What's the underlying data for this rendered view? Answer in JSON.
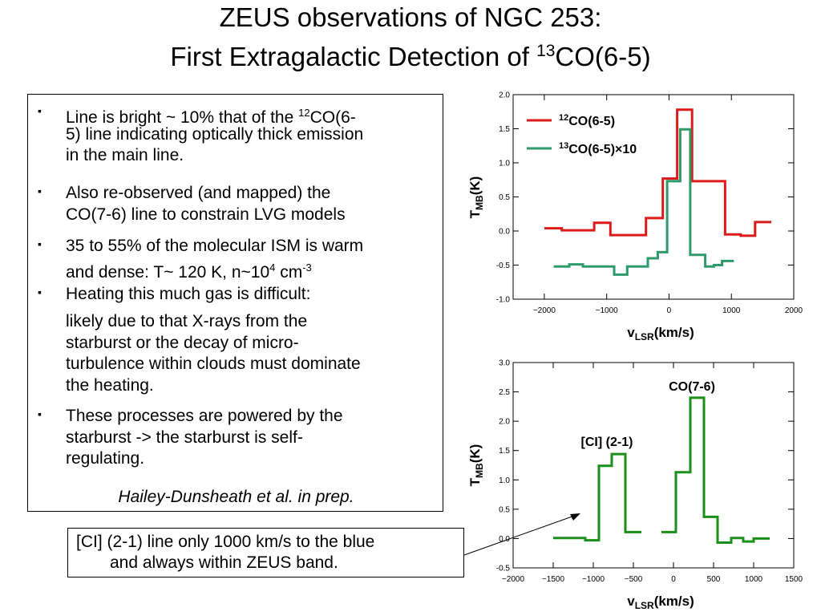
{
  "title": {
    "line1": "ZEUS observations of NGC 253:",
    "line2_prefix": "First Extragalactic Detection of ",
    "line2_sup": "13",
    "line2_suffix": "CO(6-5)"
  },
  "bullets": [
    {
      "lines": [
        {
          "pre": "Line is bright ~ 10% that of the ",
          "sup": "12",
          "post": "CO(6-"
        },
        {
          "pre": "5) line indicating optically thick emission"
        },
        {
          "pre": "in the main line."
        }
      ]
    },
    {
      "lines": [
        {
          "pre": "Also re-observed (and mapped) the"
        },
        {
          "pre": "CO(7-6) line to constrain LVG models"
        }
      ]
    },
    {
      "lines": [
        {
          "pre": "35 to 55% of the molecular ISM is warm"
        },
        {
          "pre": "and dense: T~ 120 K, n~10",
          "sup": "4",
          "post": " cm",
          "sup2": "-3"
        }
      ]
    },
    {
      "lines": [
        {
          "pre": "Heating this much gas is difficult:"
        }
      ]
    },
    {
      "no_marker": true,
      "lines": [
        {
          "pre": "likely due to that X-rays from the"
        },
        {
          "pre": "starburst or the decay of micro-"
        },
        {
          "pre": "turbulence within clouds must dominate"
        },
        {
          "pre": "the heating."
        }
      ]
    },
    {
      "lines": [
        {
          "pre": "These processes are powered by the"
        },
        {
          "pre": "starburst -> the starburst is self-"
        },
        {
          "pre": "regulating."
        }
      ]
    }
  ],
  "bullet_marker": "▪",
  "citation": "Hailey-Dunsheath et al. in prep.",
  "callout": {
    "line1": "[CI] (2-1) line only 1000 km/s to the blue",
    "line2": "and always within ZEUS band."
  },
  "colors": {
    "red": "#dd1a1a",
    "teal": "#2e9a6a",
    "green": "#1a8f1a"
  },
  "chart_data": [
    {
      "type": "line",
      "xlabel": "vLSR(km/s)",
      "ylabel": "TMB(K)",
      "xlim": [
        -2500,
        2000
      ],
      "ylim": [
        -1.0,
        2.0
      ],
      "xticks": [
        -2000,
        -1000,
        0,
        1000,
        2000
      ],
      "xtick_labels": [
        "-2000",
        "-1000",
        "0",
        "1000",
        "2000"
      ],
      "yticks": [
        -1.0,
        -0.5,
        0.0,
        0.5,
        1.0,
        1.5,
        2.0
      ],
      "ytick_labels": [
        "-1.0",
        "-0.5",
        "0.0",
        "0.5",
        "1.0",
        "1.5",
        "2.0"
      ],
      "legend": [
        {
          "sup": "12",
          "text": "CO(6-5)",
          "color": "red"
        },
        {
          "sup": "13",
          "text": "CO(6-5)×10",
          "color": "teal"
        }
      ],
      "series": [
        {
          "name": "12CO(6-5)",
          "color": "red",
          "steps": [
            [
              -2000,
              -1720,
              0.04
            ],
            [
              -1720,
              -1200,
              0.01
            ],
            [
              -1200,
              -940,
              0.12
            ],
            [
              -940,
              -370,
              -0.06
            ],
            [
              -370,
              -100,
              0.19
            ],
            [
              -100,
              130,
              0.77
            ],
            [
              130,
              370,
              1.78
            ],
            [
              370,
              900,
              0.73
            ],
            [
              900,
              1150,
              -0.05
            ],
            [
              1150,
              1380,
              -0.07
            ],
            [
              1380,
              1640,
              0.13
            ]
          ]
        },
        {
          "name": "13CO(6-5)x10",
          "color": "teal",
          "steps": [
            [
              -1850,
              -1600,
              -0.52
            ],
            [
              -1600,
              -1380,
              -0.49
            ],
            [
              -1380,
              -1030,
              -0.52
            ],
            [
              -1030,
              -880,
              -0.52
            ],
            [
              -880,
              -670,
              -0.64
            ],
            [
              -670,
              -460,
              -0.52
            ],
            [
              -460,
              -340,
              -0.52
            ],
            [
              -340,
              -180,
              -0.4
            ],
            [
              -180,
              -30,
              -0.31
            ],
            [
              -30,
              180,
              0.73
            ],
            [
              180,
              340,
              1.49
            ],
            [
              340,
              580,
              -0.35
            ],
            [
              580,
              720,
              -0.52
            ],
            [
              720,
              850,
              -0.5
            ],
            [
              850,
              1040,
              -0.44
            ]
          ]
        }
      ]
    },
    {
      "type": "line",
      "xlabel": "vLSR(km/s)",
      "ylabel": "TMB(K)",
      "xlim": [
        -2000,
        1500
      ],
      "ylim": [
        -0.5,
        3.0
      ],
      "xticks": [
        -2000,
        -1500,
        -1000,
        -500,
        0,
        500,
        1000,
        1500
      ],
      "xtick_labels": [
        "-2000",
        "-1500",
        "-1000",
        "-500",
        "0",
        "500",
        "1000",
        "1500"
      ],
      "yticks": [
        -0.5,
        0.0,
        0.5,
        1.0,
        1.5,
        2.0,
        2.5,
        3.0
      ],
      "ytick_labels": [
        "-0.5",
        "0.0",
        "0.5",
        "1.0",
        "1.5",
        "2.0",
        "2.5",
        "3.0"
      ],
      "annotations": [
        "[CI] (2-1)",
        "CO(7-6)"
      ],
      "series": [
        {
          "name": "[CI] (2-1)",
          "color": "green",
          "steps": [
            [
              -1500,
              -1100,
              0.01
            ],
            [
              -1100,
              -930,
              -0.03
            ],
            [
              -930,
              -770,
              1.24
            ],
            [
              -770,
              -600,
              1.44
            ],
            [
              -600,
              -400,
              0.11
            ]
          ]
        },
        {
          "name": "CO(7-6)",
          "color": "green",
          "steps": [
            [
              -150,
              30,
              0.11
            ],
            [
              30,
              210,
              1.13
            ],
            [
              210,
              380,
              2.4
            ],
            [
              380,
              550,
              0.37
            ],
            [
              550,
              720,
              -0.07
            ],
            [
              720,
              870,
              0.01
            ],
            [
              870,
              1000,
              -0.05
            ],
            [
              1000,
              1200,
              0.0
            ]
          ]
        }
      ]
    }
  ]
}
